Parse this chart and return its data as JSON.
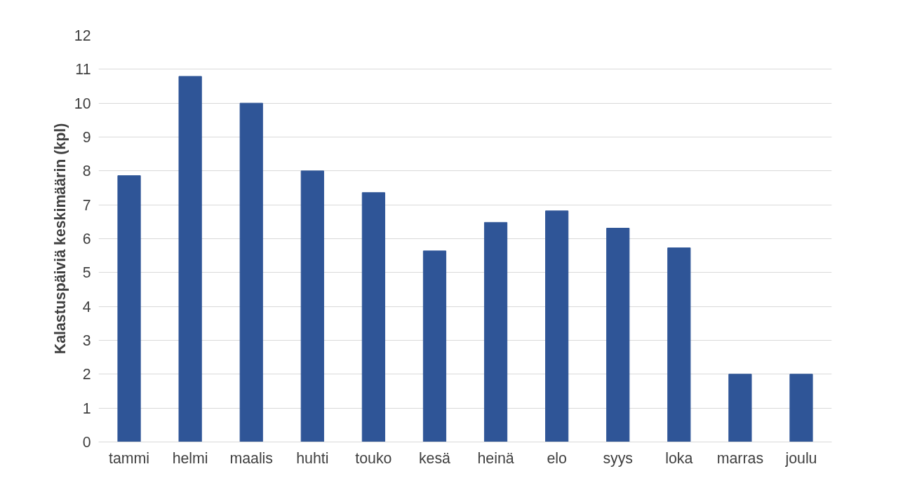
{
  "chart_data": {
    "type": "bar",
    "ylabel": "Kalastuspäiviä keskimäärin (kpl)",
    "categories": [
      "tammi",
      "helmi",
      "maalis",
      "huhti",
      "touko",
      "kesä",
      "heinä",
      "elo",
      "syys",
      "loka",
      "marras",
      "joulu"
    ],
    "values": [
      7.86,
      10.79,
      10.0,
      8.0,
      7.36,
      5.64,
      6.48,
      6.82,
      6.31,
      5.73,
      2.0,
      2.0
    ],
    "color": "#2f5597",
    "ylim": [
      0,
      12
    ],
    "yticks": [
      0,
      1,
      2,
      3,
      4,
      5,
      6,
      7,
      8,
      9,
      10,
      11,
      12
    ],
    "grid": "y"
  }
}
